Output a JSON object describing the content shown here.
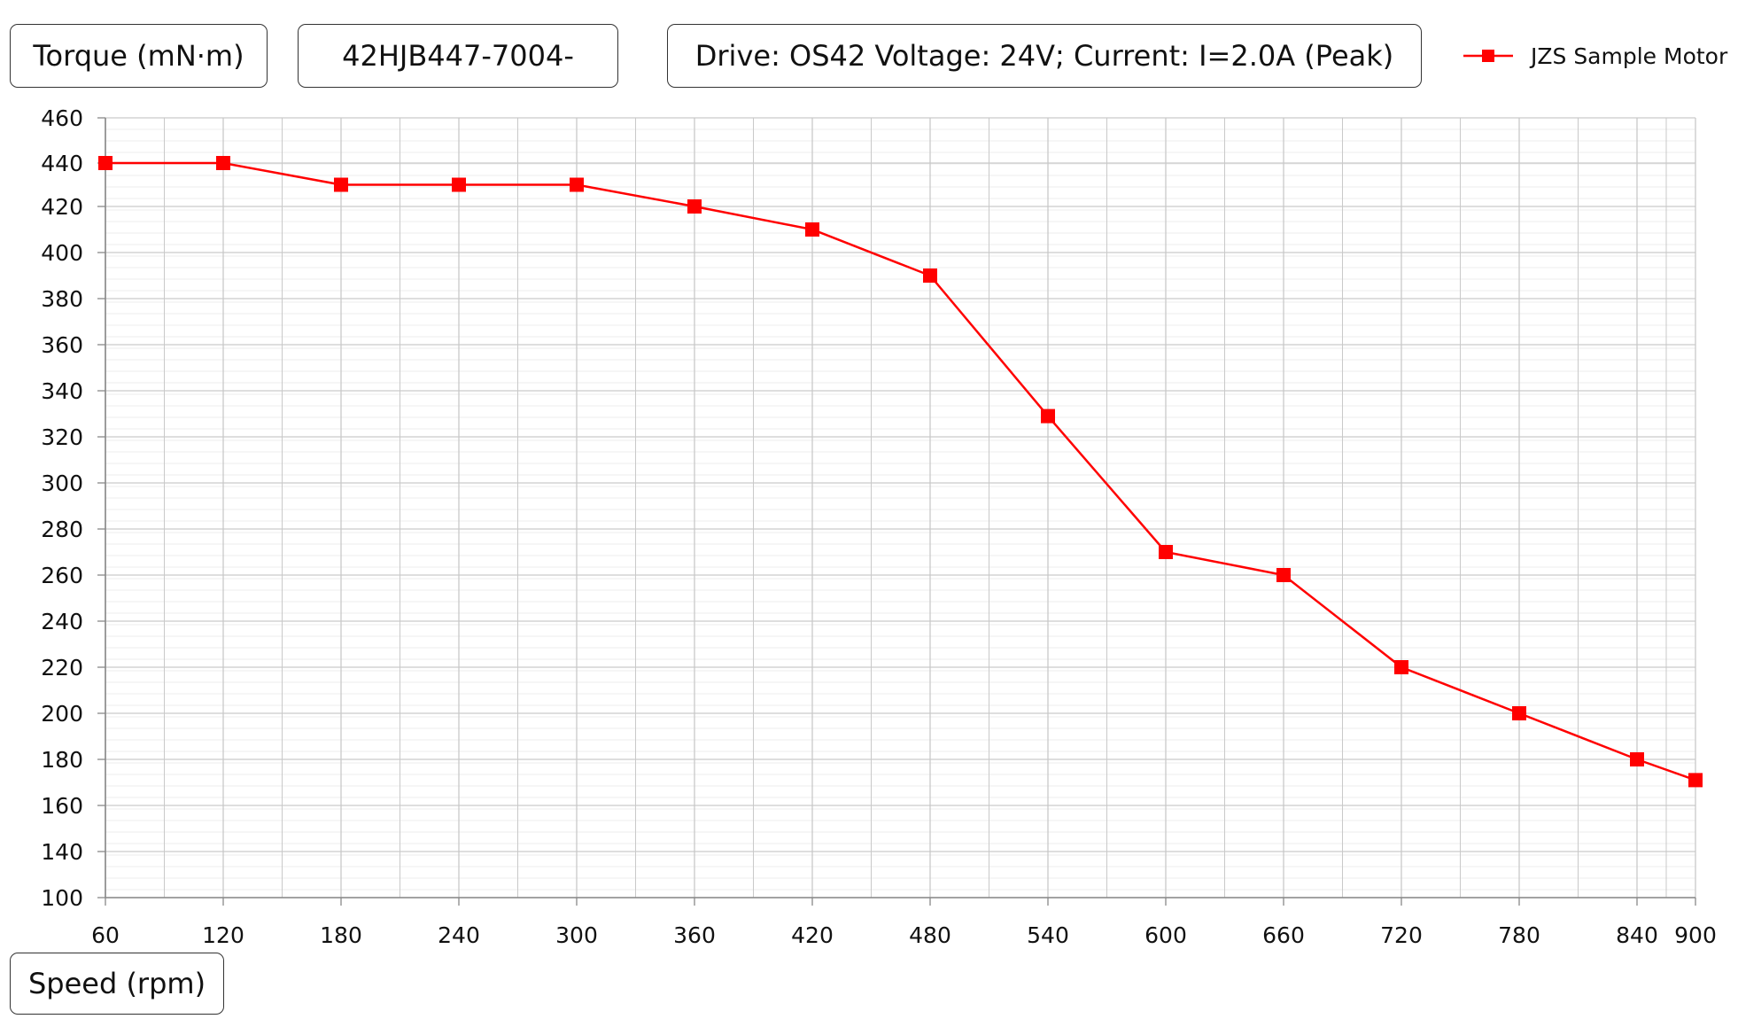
{
  "colors": {
    "series": "#ff0000",
    "grid_major": "#c9c9c9",
    "grid_minor": "#ececec",
    "axis": "#888888"
  },
  "chart_data": {
    "type": "line",
    "ylabel": "Torque (mN·m)",
    "xlabel": "Speed (rpm)",
    "annotations": {
      "model": "42HJB447-7004-",
      "drive": "Drive: OS42 Voltage: 24V; Current: I=2.0A (Peak)"
    },
    "legend": {
      "position": "top-right"
    },
    "grid": true,
    "xlim": [
      60,
      900
    ],
    "ylim": [
      100,
      460
    ],
    "x_ticks": [
      "60",
      "120",
      "180",
      "240",
      "300",
      "360",
      "420",
      "480",
      "540",
      "600",
      "660",
      "720",
      "780",
      "840",
      "900"
    ],
    "y_ticks": [
      "460",
      "440",
      "420",
      "400",
      "380",
      "360",
      "340",
      "320",
      "300",
      "280",
      "260",
      "240",
      "220",
      "200",
      "180",
      "160",
      "140",
      "100"
    ],
    "series": [
      {
        "name": "JZS Sample Motor",
        "marker": "square",
        "x": [
          60,
          120,
          180,
          240,
          300,
          360,
          420,
          480,
          540,
          600,
          660,
          720,
          780,
          840,
          900
        ],
        "y": [
          440,
          440,
          430,
          430,
          430,
          420,
          410,
          390,
          329,
          270,
          260,
          220,
          200,
          180,
          171
        ]
      }
    ]
  }
}
